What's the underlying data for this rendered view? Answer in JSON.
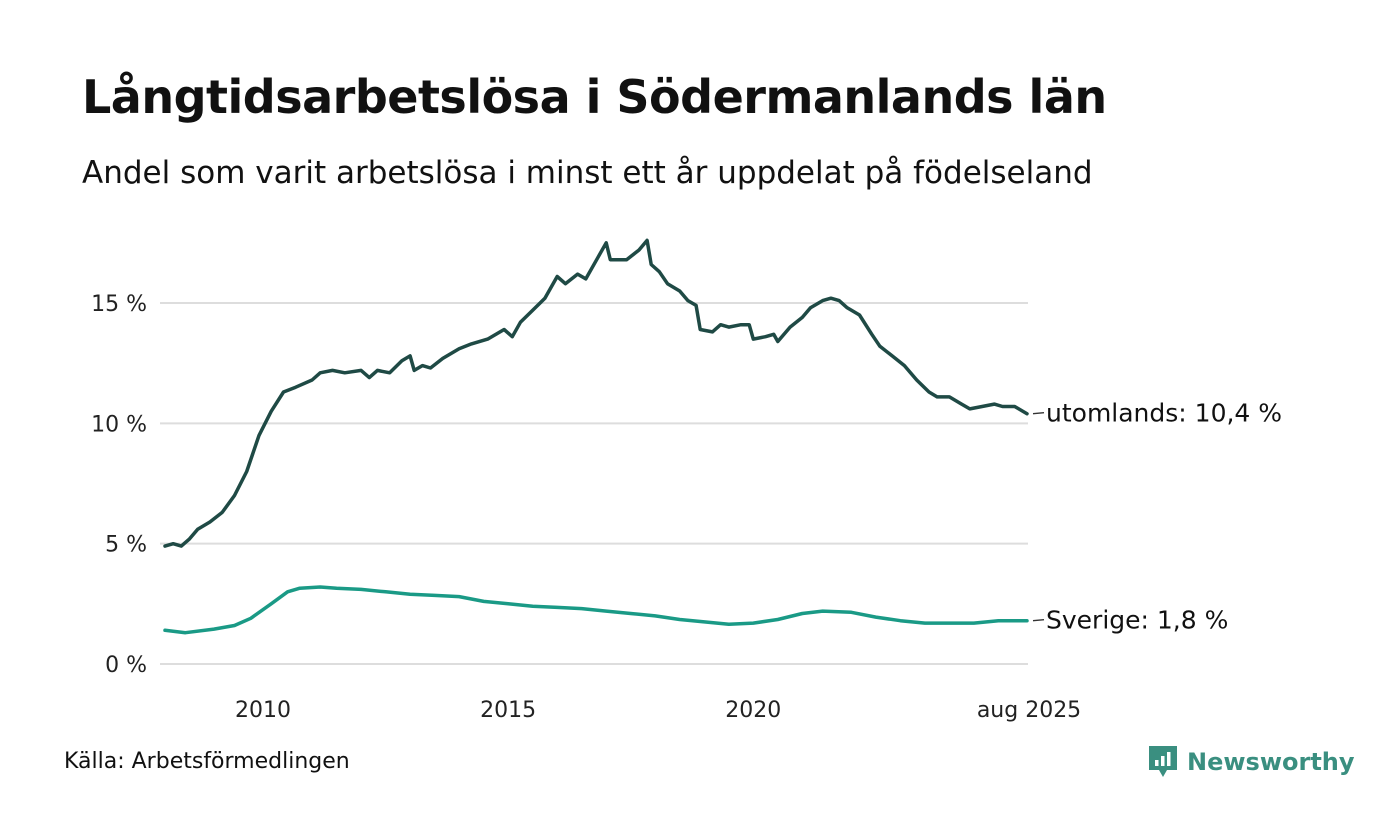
{
  "title": "Långtidsarbetslösa i Södermanlands län",
  "subtitle": "Andel som varit arbetslösa i minst ett år uppdelat på födelseland",
  "source": "Källa: Arbetsförmedlingen",
  "brand": "Newsworthy",
  "colors": {
    "utomlands": "#1f4a45",
    "sverige": "#1a9a86",
    "grid": "#dddddd",
    "brand": "#3a8f80"
  },
  "chart_data": {
    "type": "line",
    "title": "Långtidsarbetslösa i Södermanlands län",
    "subtitle": "Andel som varit arbetslösa i minst ett år uppdelat på födelseland",
    "xlabel": "",
    "ylabel": "",
    "xlim": [
      "2008-01",
      "2025-08"
    ],
    "ylim": [
      0,
      18
    ],
    "x_ticks": [
      {
        "x": "2010-01",
        "label": "2010"
      },
      {
        "x": "2015-01",
        "label": "2015"
      },
      {
        "x": "2020-01",
        "label": "2020"
      },
      {
        "x": "2025-08",
        "label": "aug 2025"
      }
    ],
    "y_ticks": [
      {
        "v": 0,
        "label": "0 %"
      },
      {
        "v": 5,
        "label": "5 %"
      },
      {
        "v": 10,
        "label": "10 %"
      },
      {
        "v": 15,
        "label": "15 %"
      }
    ],
    "grid": "horizontal",
    "series": [
      {
        "name": "utomlands",
        "end_label": "utomlands: 10,4 %",
        "color": "#1f4a45",
        "points": [
          [
            "2008-01",
            4.9
          ],
          [
            "2008-03",
            5.0
          ],
          [
            "2008-05",
            4.9
          ],
          [
            "2008-07",
            5.2
          ],
          [
            "2008-09",
            5.6
          ],
          [
            "2008-12",
            5.9
          ],
          [
            "2009-03",
            6.3
          ],
          [
            "2009-06",
            7.0
          ],
          [
            "2009-09",
            8.0
          ],
          [
            "2009-12",
            9.5
          ],
          [
            "2010-03",
            10.5
          ],
          [
            "2010-06",
            11.3
          ],
          [
            "2010-09",
            11.5
          ],
          [
            "2011-01",
            11.8
          ],
          [
            "2011-03",
            12.1
          ],
          [
            "2011-06",
            12.2
          ],
          [
            "2011-09",
            12.1
          ],
          [
            "2012-01",
            12.2
          ],
          [
            "2012-03",
            11.9
          ],
          [
            "2012-05",
            12.2
          ],
          [
            "2012-08",
            12.1
          ],
          [
            "2012-11",
            12.6
          ],
          [
            "2013-01",
            12.8
          ],
          [
            "2013-02",
            12.2
          ],
          [
            "2013-04",
            12.4
          ],
          [
            "2013-06",
            12.3
          ],
          [
            "2013-09",
            12.7
          ],
          [
            "2014-01",
            13.1
          ],
          [
            "2014-04",
            13.3
          ],
          [
            "2014-08",
            13.5
          ],
          [
            "2014-12",
            13.9
          ],
          [
            "2015-02",
            13.6
          ],
          [
            "2015-04",
            14.2
          ],
          [
            "2015-07",
            14.7
          ],
          [
            "2015-10",
            15.2
          ],
          [
            "2016-01",
            16.1
          ],
          [
            "2016-03",
            15.8
          ],
          [
            "2016-06",
            16.2
          ],
          [
            "2016-08",
            16.0
          ],
          [
            "2016-11",
            16.9
          ],
          [
            "2017-01",
            17.5
          ],
          [
            "2017-02",
            16.8
          ],
          [
            "2017-04",
            16.8
          ],
          [
            "2017-06",
            16.8
          ],
          [
            "2017-09",
            17.2
          ],
          [
            "2017-11",
            17.6
          ],
          [
            "2017-12",
            16.6
          ],
          [
            "2018-02",
            16.3
          ],
          [
            "2018-04",
            15.8
          ],
          [
            "2018-07",
            15.5
          ],
          [
            "2018-09",
            15.1
          ],
          [
            "2018-11",
            14.9
          ],
          [
            "2018-12",
            13.9
          ],
          [
            "2019-03",
            13.8
          ],
          [
            "2019-05",
            14.1
          ],
          [
            "2019-07",
            14.0
          ],
          [
            "2019-10",
            14.1
          ],
          [
            "2019-12",
            14.1
          ],
          [
            "2020-01",
            13.5
          ],
          [
            "2020-04",
            13.6
          ],
          [
            "2020-06",
            13.7
          ],
          [
            "2020-07",
            13.4
          ],
          [
            "2020-10",
            14.0
          ],
          [
            "2021-01",
            14.4
          ],
          [
            "2021-03",
            14.8
          ],
          [
            "2021-06",
            15.1
          ],
          [
            "2021-08",
            15.2
          ],
          [
            "2021-10",
            15.1
          ],
          [
            "2021-12",
            14.8
          ],
          [
            "2022-03",
            14.5
          ],
          [
            "2022-06",
            13.7
          ],
          [
            "2022-08",
            13.2
          ],
          [
            "2022-11",
            12.8
          ],
          [
            "2023-02",
            12.4
          ],
          [
            "2023-05",
            11.8
          ],
          [
            "2023-08",
            11.3
          ],
          [
            "2023-10",
            11.1
          ],
          [
            "2024-01",
            11.1
          ],
          [
            "2024-04",
            10.8
          ],
          [
            "2024-06",
            10.6
          ],
          [
            "2024-09",
            10.7
          ],
          [
            "2024-12",
            10.8
          ],
          [
            "2025-02",
            10.7
          ],
          [
            "2025-05",
            10.7
          ],
          [
            "2025-08",
            10.4
          ]
        ]
      },
      {
        "name": "Sverige",
        "end_label": "Sverige:  1,8 %",
        "color": "#1a9a86",
        "points": [
          [
            "2008-01",
            1.4
          ],
          [
            "2008-06",
            1.3
          ],
          [
            "2009-01",
            1.45
          ],
          [
            "2009-06",
            1.6
          ],
          [
            "2009-10",
            1.9
          ],
          [
            "2010-03",
            2.5
          ],
          [
            "2010-07",
            3.0
          ],
          [
            "2010-10",
            3.15
          ],
          [
            "2011-03",
            3.2
          ],
          [
            "2011-07",
            3.15
          ],
          [
            "2012-01",
            3.1
          ],
          [
            "2012-07",
            3.0
          ],
          [
            "2013-01",
            2.9
          ],
          [
            "2013-07",
            2.85
          ],
          [
            "2014-01",
            2.8
          ],
          [
            "2014-07",
            2.6
          ],
          [
            "2015-01",
            2.5
          ],
          [
            "2015-07",
            2.4
          ],
          [
            "2016-01",
            2.35
          ],
          [
            "2016-07",
            2.3
          ],
          [
            "2017-01",
            2.2
          ],
          [
            "2017-07",
            2.1
          ],
          [
            "2018-01",
            2.0
          ],
          [
            "2018-07",
            1.85
          ],
          [
            "2019-01",
            1.75
          ],
          [
            "2019-07",
            1.65
          ],
          [
            "2020-01",
            1.7
          ],
          [
            "2020-07",
            1.85
          ],
          [
            "2021-01",
            2.1
          ],
          [
            "2021-06",
            2.2
          ],
          [
            "2022-01",
            2.15
          ],
          [
            "2022-07",
            1.95
          ],
          [
            "2023-01",
            1.8
          ],
          [
            "2023-07",
            1.7
          ],
          [
            "2024-01",
            1.7
          ],
          [
            "2024-07",
            1.7
          ],
          [
            "2025-01",
            1.8
          ],
          [
            "2025-08",
            1.8
          ]
        ]
      }
    ]
  }
}
